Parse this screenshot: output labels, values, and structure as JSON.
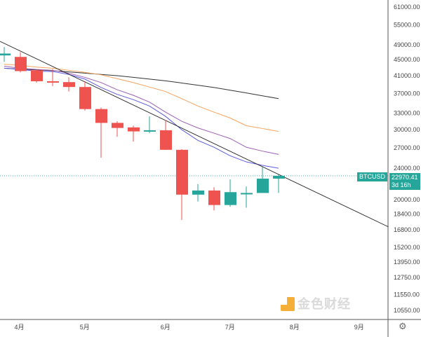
{
  "chart_data": {
    "type": "candlestick",
    "symbol": "BTCUSD",
    "interval": "weekly",
    "scale": "log",
    "last_price": "22970.41",
    "countdown": "3d 16h",
    "y_ticks": [
      61000,
      55000,
      49000,
      45000,
      41000,
      37000,
      33000,
      30000,
      27000,
      24000,
      20000,
      18400,
      16800,
      15200,
      13950,
      12750,
      11550,
      10550
    ],
    "y_tick_labels": [
      "61000.00",
      "55000.00",
      "49000.00",
      "45000.00",
      "41000.00",
      "37000.00",
      "33000.00",
      "30000.00",
      "27000.00",
      "24000.00",
      "20000.00",
      "18400.00",
      "16800.00",
      "15200.00",
      "13950.00",
      "12750.00",
      "11550.00",
      "10550.00"
    ],
    "x_ticks": [
      {
        "label": "4月",
        "index": 0.85
      },
      {
        "label": "5月",
        "index": 4.9
      },
      {
        "label": "6月",
        "index": 9.9
      },
      {
        "label": "7月",
        "index": 13.9
      },
      {
        "label": "8月",
        "index": 17.9
      },
      {
        "label": "9月",
        "index": 21.9
      }
    ],
    "candles": [
      {
        "o": 46100,
        "h": 48400,
        "l": 44400,
        "c": 46600
      },
      {
        "o": 45700,
        "h": 47000,
        "l": 41800,
        "c": 42100
      },
      {
        "o": 42300,
        "h": 42600,
        "l": 39400,
        "c": 39700
      },
      {
        "o": 39700,
        "h": 42600,
        "l": 38600,
        "c": 39500
      },
      {
        "o": 39500,
        "h": 40600,
        "l": 37400,
        "c": 38400
      },
      {
        "o": 38400,
        "h": 39700,
        "l": 33500,
        "c": 33800
      },
      {
        "o": 33800,
        "h": 34100,
        "l": 25500,
        "c": 31200
      },
      {
        "o": 31200,
        "h": 31500,
        "l": 28800,
        "c": 30300
      },
      {
        "o": 30400,
        "h": 30700,
        "l": 28000,
        "c": 29700
      },
      {
        "o": 29700,
        "h": 32400,
        "l": 29400,
        "c": 29900
      },
      {
        "o": 29900,
        "h": 31700,
        "l": 26700,
        "c": 26700
      },
      {
        "o": 26700,
        "h": 26800,
        "l": 17800,
        "c": 20600
      },
      {
        "o": 20600,
        "h": 21900,
        "l": 19800,
        "c": 21100
      },
      {
        "o": 21100,
        "h": 21500,
        "l": 18800,
        "c": 19400
      },
      {
        "o": 19400,
        "h": 22500,
        "l": 19200,
        "c": 20900
      },
      {
        "o": 20800,
        "h": 21600,
        "l": 19100,
        "c": 20800
      },
      {
        "o": 20800,
        "h": 24200,
        "l": 20800,
        "c": 22600
      },
      {
        "o": 22600,
        "h": 23100,
        "l": 20800,
        "c": 22970.41
      }
    ],
    "moving_averages": [
      {
        "color": "#333333",
        "values": [
          42800,
          42600,
          42400,
          42200,
          41900,
          41600,
          41300,
          41000,
          40600,
          40200,
          39800,
          39300,
          38800,
          38300,
          37700,
          37100,
          36500,
          35900
        ]
      },
      {
        "color": "#f5a25d",
        "values": [
          43800,
          43500,
          43100,
          42800,
          42300,
          41800,
          41200,
          40300,
          39400,
          38400,
          37400,
          35900,
          34400,
          33200,
          32100,
          30700,
          30200,
          29700
        ]
      },
      {
        "color": "#9c5fb5",
        "values": [
          43300,
          42800,
          42500,
          42300,
          41600,
          40600,
          39400,
          37800,
          36600,
          35200,
          33200,
          31500,
          30300,
          29400,
          28500,
          27100,
          26500,
          26000
        ]
      },
      {
        "color": "#5b5be0",
        "values": [
          42800,
          42500,
          42100,
          42000,
          41300,
          40200,
          38300,
          36800,
          35700,
          34400,
          32400,
          30000,
          28200,
          27100,
          25800,
          24900,
          24400,
          24000
        ]
      }
    ],
    "trendline": {
      "from": {
        "index": -0.26,
        "price": 50000
      },
      "to": {
        "index": 23.8,
        "price": 17100
      }
    },
    "colors": {
      "up": "#26a69a",
      "down": "#ef5350"
    }
  },
  "watermark": "金色财经"
}
